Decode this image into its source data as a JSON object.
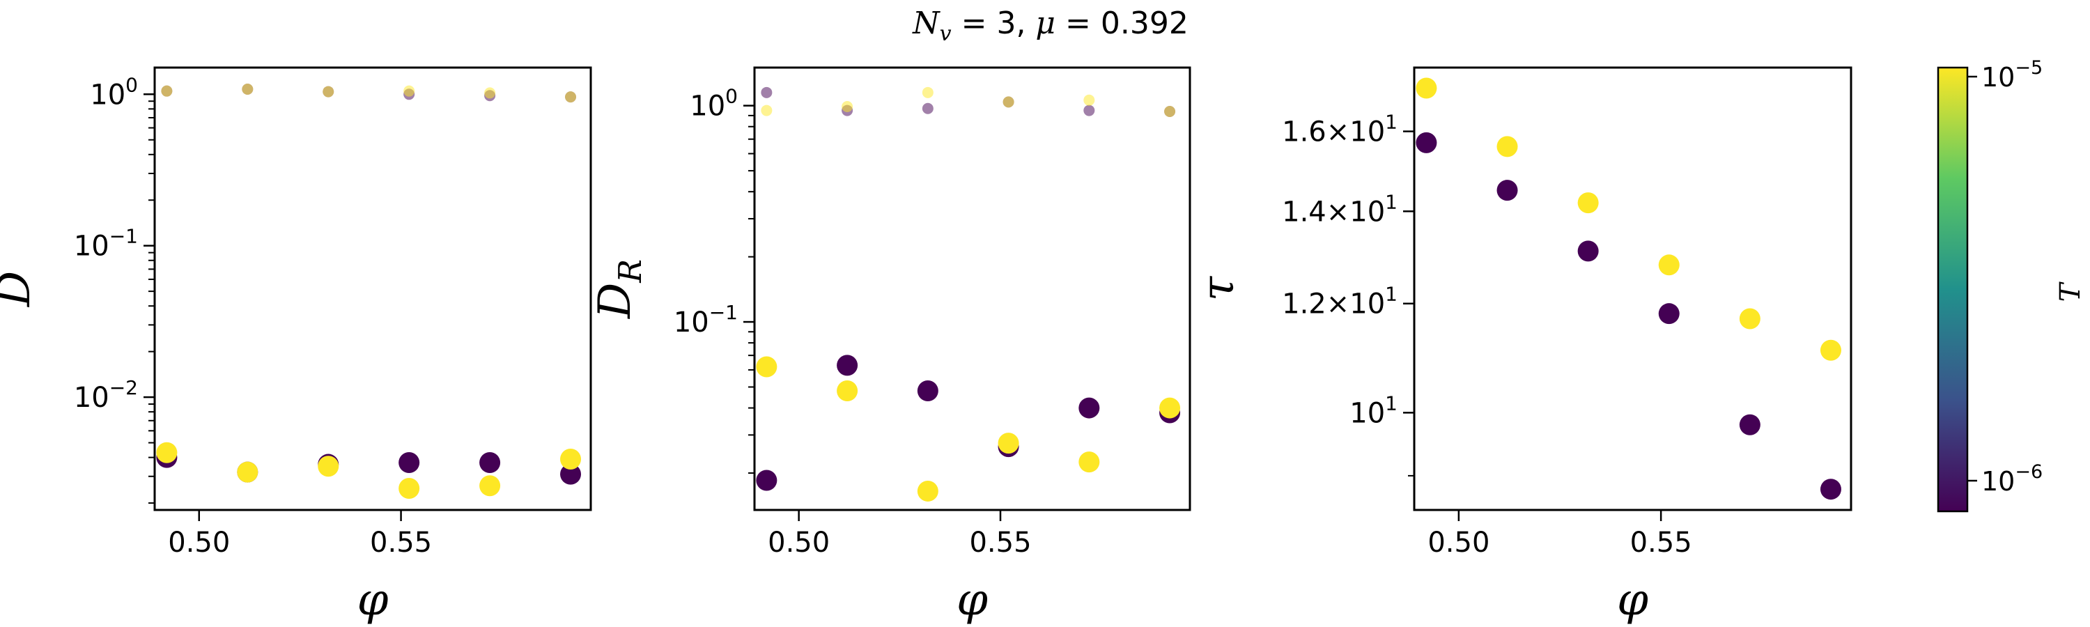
{
  "figure": {
    "title_plain": "N_v = 3, μ = 0.392",
    "colorbar": {
      "label": "T",
      "ticks": [
        "10^{-5}",
        "10^{-6}"
      ],
      "colormap": "viridis",
      "colors": [
        "#440154",
        "#3b528b",
        "#21918c",
        "#5ec962",
        "#fde725"
      ]
    }
  },
  "chart_data": [
    {
      "type": "scatter",
      "panel": "left",
      "xlabel": "φ",
      "ylabel": "D",
      "yscale": "log",
      "xlim": [
        0.489,
        0.597
      ],
      "ylim": [
        0.0018,
        1.5
      ],
      "xticks": [
        0.5,
        0.55
      ],
      "xtick_labels": [
        "0.50",
        "0.55"
      ],
      "yticks": [
        0.01,
        0.1,
        1
      ],
      "ytick_labels": [
        "10^{-2}",
        "10^{-1}",
        "10^{0}"
      ],
      "series": [
        {
          "color": "#440154",
          "marker": "large",
          "x": [
            0.492,
            0.512,
            0.532,
            0.552,
            0.572,
            0.592
          ],
          "y": [
            0.004,
            0.0032,
            0.0036,
            0.0037,
            0.0037,
            0.0031
          ]
        },
        {
          "color": "#fde725",
          "marker": "large",
          "x": [
            0.492,
            0.512,
            0.532,
            0.552,
            0.572,
            0.592
          ],
          "y": [
            0.0043,
            0.0032,
            0.0035,
            0.0025,
            0.0026,
            0.0039
          ]
        },
        {
          "color": "#440154",
          "marker": "small-translucent",
          "x": [
            0.492,
            0.512,
            0.532,
            0.552,
            0.572,
            0.592
          ],
          "y": [
            1.05,
            1.08,
            1.04,
            1.0,
            0.98,
            0.96
          ]
        },
        {
          "color": "#fde725",
          "marker": "small-translucent",
          "x": [
            0.492,
            0.512,
            0.532,
            0.552,
            0.572,
            0.592
          ],
          "y": [
            1.05,
            1.08,
            1.04,
            1.05,
            1.02,
            0.96
          ]
        }
      ]
    },
    {
      "type": "scatter",
      "panel": "middle",
      "xlabel": "φ",
      "ylabel": "D_R",
      "yscale": "log",
      "xlim": [
        0.489,
        0.597
      ],
      "ylim": [
        0.0135,
        1.5
      ],
      "xticks": [
        0.5,
        0.55
      ],
      "xtick_labels": [
        "0.50",
        "0.55"
      ],
      "yticks": [
        0.1,
        1
      ],
      "ytick_labels": [
        "10^{-1}",
        "10^{0}"
      ],
      "series": [
        {
          "color": "#440154",
          "marker": "large",
          "x": [
            0.492,
            0.512,
            0.532,
            0.552,
            0.572,
            0.592
          ],
          "y": [
            0.0185,
            0.063,
            0.048,
            0.0265,
            0.04,
            0.038
          ]
        },
        {
          "color": "#fde725",
          "marker": "large",
          "x": [
            0.492,
            0.512,
            0.532,
            0.552,
            0.572,
            0.592
          ],
          "y": [
            0.062,
            0.048,
            0.0165,
            0.0275,
            0.0225,
            0.04
          ]
        },
        {
          "color": "#440154",
          "marker": "small-translucent",
          "x": [
            0.492,
            0.512,
            0.532,
            0.552,
            0.572,
            0.592
          ],
          "y": [
            1.15,
            0.95,
            0.97,
            1.04,
            0.95,
            0.94
          ]
        },
        {
          "color": "#fde725",
          "marker": "small-translucent",
          "x": [
            0.492,
            0.512,
            0.532,
            0.552,
            0.572,
            0.592
          ],
          "y": [
            0.95,
            0.99,
            1.15,
            1.04,
            1.06,
            0.94
          ]
        }
      ]
    },
    {
      "type": "scatter",
      "panel": "right",
      "xlabel": "φ",
      "ylabel": "τ",
      "yscale": "log",
      "xlim": [
        0.489,
        0.597
      ],
      "ylim": [
        8.5,
        17.8
      ],
      "xticks": [
        0.5,
        0.55
      ],
      "xtick_labels": [
        "0.50",
        "0.55"
      ],
      "yticks": [
        10,
        12,
        14,
        16
      ],
      "ytick_labels": [
        "10^{1}",
        "1.2×10^{1}",
        "1.4×10^{1}",
        "1.6×10^{1}"
      ],
      "series": [
        {
          "color": "#440154",
          "marker": "large",
          "x": [
            0.492,
            0.512,
            0.532,
            0.552,
            0.572,
            0.592
          ],
          "y": [
            15.7,
            14.5,
            13.1,
            11.8,
            9.8,
            8.8
          ]
        },
        {
          "color": "#fde725",
          "marker": "large",
          "x": [
            0.492,
            0.512,
            0.532,
            0.552,
            0.572,
            0.592
          ],
          "y": [
            17.2,
            15.6,
            14.2,
            12.8,
            11.7,
            11.1
          ]
        }
      ]
    }
  ]
}
